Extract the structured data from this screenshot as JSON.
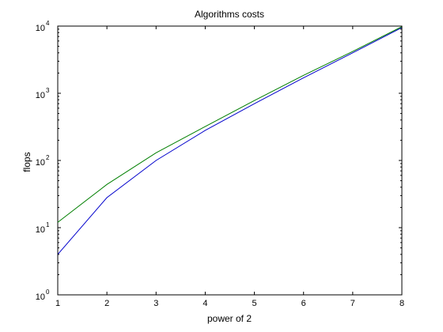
{
  "chart_data": {
    "type": "line",
    "title": "Algorithms costs",
    "xlabel": "power of 2",
    "ylabel": "flops",
    "xlim": [
      1,
      8
    ],
    "ylim": [
      1,
      10000
    ],
    "yscale": "log",
    "grid": false,
    "x_ticks": [
      "1",
      "2",
      "3",
      "4",
      "5",
      "6",
      "7",
      "8"
    ],
    "y_ticks": [
      {
        "base": "10",
        "exp": "0"
      },
      {
        "base": "10",
        "exp": "1"
      },
      {
        "base": "10",
        "exp": "2"
      },
      {
        "base": "10",
        "exp": "3"
      },
      {
        "base": "10",
        "exp": "4"
      }
    ],
    "x": [
      1,
      2,
      3,
      4,
      5,
      6,
      7,
      8
    ],
    "series": [
      {
        "color": "#0000cc",
        "values": [
          4,
          28,
          100,
          280,
          700,
          1700,
          4000,
          9500
        ]
      },
      {
        "color": "#007f00",
        "values": [
          12,
          44,
          130,
          320,
          780,
          1850,
          4200,
          9800
        ]
      }
    ]
  }
}
